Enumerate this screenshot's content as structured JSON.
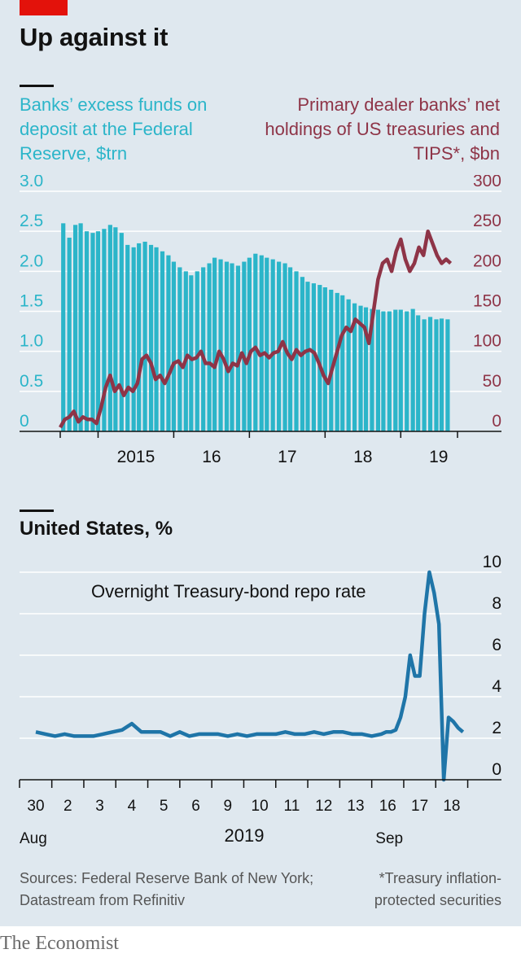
{
  "header": {
    "title": "Up against it"
  },
  "chart_data": [
    {
      "type": "bar",
      "name": "top-chart",
      "left_axis_label": "Banks’ excess funds on deposit at the Federal Reserve, $trn",
      "right_axis_label": "Primary dealer banks’ net holdings of US treasuries and TIPS*, $bn",
      "x_ticks": [
        "2015",
        "16",
        "17",
        "18",
        "19"
      ],
      "y_left_ticks": [
        "0",
        "0.5",
        "1.0",
        "1.5",
        "2.0",
        "2.5",
        "3.0"
      ],
      "y_right_ticks": [
        "0",
        "50",
        "100",
        "150",
        "200",
        "250",
        "300"
      ],
      "ylim_left": [
        0,
        3.0
      ],
      "ylim_right": [
        0,
        300
      ],
      "grid": true,
      "x_range_years": [
        2014.5,
        2019.75
      ],
      "colors": {
        "bars": "#2bb5c9",
        "line": "#8e3447"
      },
      "series": [
        {
          "axis": "left",
          "kind": "bar",
          "x": [
            2014.54,
            2014.62,
            2014.7,
            2014.77,
            2014.85,
            2014.93,
            2015.0,
            2015.08,
            2015.16,
            2015.23,
            2015.31,
            2015.39,
            2015.47,
            2015.54,
            2015.62,
            2015.7,
            2015.77,
            2015.85,
            2015.93,
            2016.0,
            2016.08,
            2016.16,
            2016.23,
            2016.31,
            2016.39,
            2016.47,
            2016.54,
            2016.62,
            2016.7,
            2016.77,
            2016.85,
            2016.93,
            2017.0,
            2017.08,
            2017.16,
            2017.23,
            2017.31,
            2017.39,
            2017.47,
            2017.54,
            2017.62,
            2017.7,
            2017.77,
            2017.85,
            2017.93,
            2018.0,
            2018.08,
            2018.16,
            2018.23,
            2018.31,
            2018.39,
            2018.47,
            2018.54,
            2018.62,
            2018.7,
            2018.77,
            2018.85,
            2018.93,
            2019.0,
            2019.08,
            2019.16,
            2019.23,
            2019.31,
            2019.39,
            2019.47,
            2019.54,
            2019.62
          ],
          "values": [
            2.6,
            2.42,
            2.58,
            2.6,
            2.5,
            2.48,
            2.5,
            2.53,
            2.58,
            2.55,
            2.48,
            2.33,
            2.3,
            2.35,
            2.37,
            2.33,
            2.3,
            2.25,
            2.2,
            2.12,
            2.05,
            2.0,
            1.95,
            2.0,
            2.05,
            2.1,
            2.17,
            2.15,
            2.12,
            2.1,
            2.07,
            2.12,
            2.17,
            2.22,
            2.2,
            2.17,
            2.15,
            2.12,
            2.1,
            2.05,
            2.0,
            1.93,
            1.87,
            1.85,
            1.83,
            1.8,
            1.77,
            1.73,
            1.7,
            1.65,
            1.6,
            1.57,
            1.55,
            1.53,
            1.52,
            1.5,
            1.5,
            1.52,
            1.52,
            1.5,
            1.53,
            1.45,
            1.4,
            1.43,
            1.4,
            1.41,
            1.4
          ]
        },
        {
          "axis": "right",
          "kind": "line",
          "x": [
            2014.5,
            2014.56,
            2014.62,
            2014.68,
            2014.74,
            2014.8,
            2014.86,
            2014.92,
            2014.98,
            2015.04,
            2015.1,
            2015.16,
            2015.22,
            2015.28,
            2015.34,
            2015.4,
            2015.46,
            2015.52,
            2015.58,
            2015.64,
            2015.7,
            2015.76,
            2015.82,
            2015.88,
            2015.94,
            2016.0,
            2016.06,
            2016.12,
            2016.18,
            2016.24,
            2016.3,
            2016.36,
            2016.42,
            2016.48,
            2016.54,
            2016.6,
            2016.66,
            2016.72,
            2016.78,
            2016.84,
            2016.9,
            2016.96,
            2017.02,
            2017.08,
            2017.14,
            2017.2,
            2017.26,
            2017.32,
            2017.38,
            2017.44,
            2017.5,
            2017.56,
            2017.62,
            2017.68,
            2017.74,
            2017.8,
            2017.86,
            2017.92,
            2017.98,
            2018.04,
            2018.1,
            2018.16,
            2018.22,
            2018.28,
            2018.34,
            2018.4,
            2018.46,
            2018.52,
            2018.58,
            2018.64,
            2018.7,
            2018.76,
            2018.82,
            2018.88,
            2018.94,
            2019.0,
            2019.06,
            2019.12,
            2019.18,
            2019.24,
            2019.3,
            2019.36,
            2019.42,
            2019.48,
            2019.54,
            2019.6,
            2019.66
          ],
          "values": [
            5,
            15,
            18,
            25,
            12,
            18,
            15,
            15,
            10,
            30,
            55,
            70,
            50,
            58,
            45,
            55,
            50,
            60,
            90,
            95,
            85,
            65,
            70,
            60,
            72,
            85,
            88,
            80,
            95,
            90,
            92,
            100,
            85,
            85,
            80,
            100,
            90,
            75,
            85,
            82,
            98,
            85,
            100,
            105,
            95,
            98,
            92,
            98,
            100,
            112,
            98,
            90,
            102,
            95,
            100,
            102,
            98,
            85,
            70,
            60,
            80,
            100,
            120,
            130,
            125,
            140,
            135,
            130,
            110,
            150,
            190,
            210,
            215,
            200,
            225,
            240,
            215,
            200,
            210,
            230,
            220,
            250,
            235,
            220,
            210,
            215,
            210
          ]
        }
      ]
    },
    {
      "type": "line",
      "name": "bottom-chart",
      "title": "United States, %",
      "annotation": "Overnight Treasury-bond repo rate",
      "categories": [
        "30",
        "2",
        "3",
        "4",
        "5",
        "6",
        "9",
        "10",
        "11",
        "12",
        "13",
        "16",
        "17",
        "18"
      ],
      "month_labels": [
        "Aug",
        "Sep"
      ],
      "year_label": "2019",
      "y_ticks": [
        "0",
        "2",
        "4",
        "6",
        "8",
        "10"
      ],
      "ylim": [
        0,
        10
      ],
      "grid": true,
      "colors": {
        "line": "#1f75a8"
      },
      "series": [
        {
          "x": [
            0,
            0.3,
            0.6,
            0.9,
            1.2,
            1.5,
            1.8,
            2.1,
            2.4,
            2.7,
            3.0,
            3.3,
            3.6,
            3.9,
            4.2,
            4.5,
            4.8,
            5.1,
            5.4,
            5.7,
            6.0,
            6.3,
            6.6,
            6.9,
            7.2,
            7.5,
            7.8,
            8.1,
            8.4,
            8.7,
            9.0,
            9.3,
            9.6,
            9.9,
            10.2,
            10.5,
            10.8,
            10.95,
            11.1,
            11.25,
            11.4,
            11.55,
            11.7,
            11.85,
            12.0,
            12.15,
            12.3,
            12.45,
            12.6,
            12.75,
            12.9,
            13.05,
            13.2,
            13.35
          ],
          "values": [
            2.3,
            2.2,
            2.1,
            2.2,
            2.1,
            2.1,
            2.1,
            2.2,
            2.3,
            2.4,
            2.7,
            2.3,
            2.3,
            2.3,
            2.1,
            2.3,
            2.1,
            2.2,
            2.2,
            2.2,
            2.1,
            2.2,
            2.1,
            2.2,
            2.2,
            2.2,
            2.3,
            2.2,
            2.2,
            2.3,
            2.2,
            2.3,
            2.3,
            2.2,
            2.2,
            2.1,
            2.2,
            2.3,
            2.3,
            2.4,
            3.0,
            4.0,
            6.0,
            5.0,
            5.0,
            8.0,
            10.0,
            9.0,
            7.5,
            0.0,
            3.0,
            2.8,
            2.5,
            2.3
          ]
        }
      ]
    }
  ],
  "sources": "Sources: Federal Reserve Bank of New York; Datastream from Refinitiv",
  "footnote": "*Treasury inflation-protected securities",
  "brand": "The Economist"
}
